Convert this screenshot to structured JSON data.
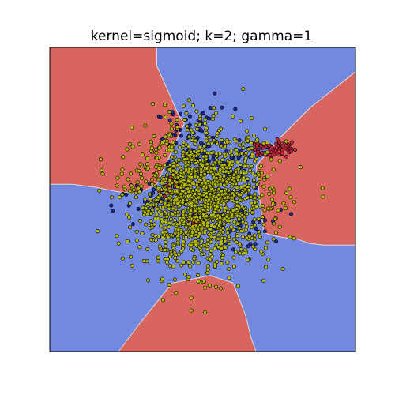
{
  "chart_data": {
    "type": "scatter",
    "title": "kernel=sigmoid; k=2; gamma=1",
    "xlabel": "",
    "ylabel": "",
    "axes_visible": false,
    "grid": false,
    "xlim": [
      -1,
      1
    ],
    "ylim": [
      -1,
      1
    ],
    "colors": {
      "region_red": "#d8665e",
      "region_blue": "#7389df",
      "boundary": "#dcdcdc",
      "class_red": "#c0233a",
      "class_blue": "#1f2a8a",
      "class_yellow": "#b3b800",
      "marker_edge": "#000000"
    },
    "decision_regions": [
      {
        "class": "red",
        "polygon": [
          [
            -1,
            1
          ],
          [
            -0.3,
            1
          ],
          [
            -0.3,
            0.88
          ],
          [
            -0.22,
            0.7
          ],
          [
            -0.16,
            0.56
          ],
          [
            -0.12,
            0.5
          ],
          [
            -0.3,
            0.1
          ],
          [
            -0.42,
            0.04
          ],
          [
            -0.55,
            0.05
          ],
          [
            -0.7,
            0.08
          ],
          [
            -0.85,
            0.1
          ],
          [
            -1,
            0.1
          ]
        ]
      },
      {
        "class": "red",
        "polygon": [
          [
            1,
            0.84
          ],
          [
            0.85,
            0.72
          ],
          [
            0.7,
            0.6
          ],
          [
            0.5,
            0.4
          ],
          [
            0.35,
            0.22
          ],
          [
            0.4,
            -0.22
          ],
          [
            0.52,
            -0.25
          ],
          [
            0.62,
            -0.26
          ],
          [
            0.7,
            -0.29
          ],
          [
            0.8,
            -0.3
          ],
          [
            0.93,
            -0.3
          ],
          [
            1,
            -0.3
          ]
        ]
      },
      {
        "class": "red",
        "polygon": [
          [
            -0.55,
            -1
          ],
          [
            -0.4,
            -0.8
          ],
          [
            -0.2,
            -0.55
          ],
          [
            0.05,
            -0.5
          ],
          [
            0.2,
            -0.55
          ],
          [
            0.28,
            -0.76
          ],
          [
            0.32,
            -0.92
          ],
          [
            0.35,
            -1
          ]
        ]
      }
    ],
    "series": [
      {
        "class": "blue",
        "count": 180,
        "clusters": [
          {
            "cx": -0.05,
            "cy": 0.4,
            "sx": 0.13,
            "sy": 0.1,
            "n": 70
          },
          {
            "cx": 0.15,
            "cy": 0.2,
            "sx": 0.1,
            "sy": 0.08,
            "n": 40
          },
          {
            "cx": 0.32,
            "cy": -0.15,
            "sx": 0.14,
            "sy": 0.1,
            "n": 35
          },
          {
            "cx": -0.28,
            "cy": 0.0,
            "sx": 0.18,
            "sy": 0.08,
            "n": 35
          }
        ]
      },
      {
        "class": "red",
        "count": 150,
        "clusters": [
          {
            "cx": 0.44,
            "cy": 0.34,
            "sx": 0.07,
            "sy": 0.03,
            "n": 70
          },
          {
            "cx": -0.18,
            "cy": 0.1,
            "sx": 0.05,
            "sy": 0.04,
            "n": 60
          },
          {
            "cx": -0.04,
            "cy": -0.13,
            "sx": 0.03,
            "sy": 0.02,
            "n": 20
          }
        ]
      },
      {
        "class": "yellow",
        "count": 1500,
        "clusters": [
          {
            "cx": 0.0,
            "cy": 0.0,
            "sx": 0.22,
            "sy": 0.22,
            "n": 1500
          }
        ]
      }
    ]
  }
}
